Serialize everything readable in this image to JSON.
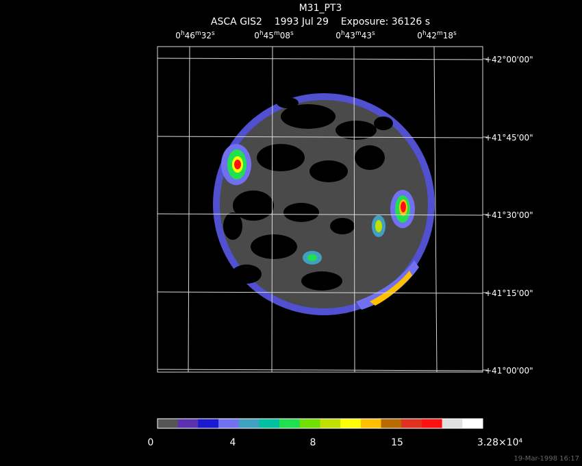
{
  "header": {
    "title": "M31_PT3",
    "subtitle": "ASCA GIS2    1993 Jul 29    Exposure: 36126 s"
  },
  "ra_labels": [
    "0h46m32s",
    "0h45m08s",
    "0h43m43s",
    "0h42m18s"
  ],
  "dec_labels": [
    "+42°00'00\"",
    "+41°45'00\"",
    "+41°30'00\"",
    "+41°15'00\"",
    "+41°00'00\""
  ],
  "colorbar": {
    "colors": [
      "#555555",
      "#5a2fb0",
      "#1a1ad0",
      "#7070f0",
      "#3fa0c0",
      "#00c0a0",
      "#20e050",
      "#70e000",
      "#c0e000",
      "#ffff00",
      "#ffc000",
      "#b86a00",
      "#e03020",
      "#ff1010",
      "#e0e0e0",
      "#ffffff"
    ],
    "labels": [
      "0",
      "4",
      "8",
      "15",
      "3.28×10⁴"
    ]
  },
  "timestamp": "19-Mar-1998 16:17"
}
